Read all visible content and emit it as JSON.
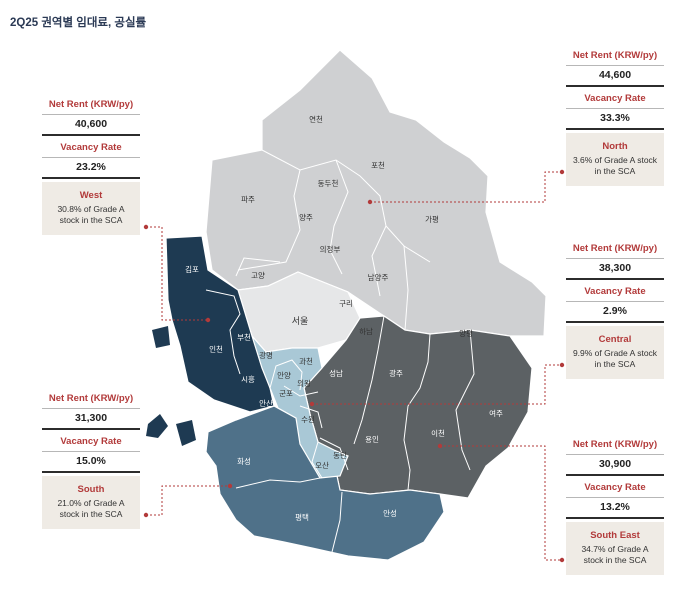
{
  "title": "2Q25 권역별 임대료, 공실률",
  "cards": {
    "north": {
      "rent_label": "Net Rent (KRW/py)",
      "rent": "44,600",
      "vac_label": "Vacancy Rate",
      "vac": "33.3%",
      "name": "North",
      "desc": "3.6% of Grade A stock in the SCA"
    },
    "west": {
      "rent_label": "Net Rent (KRW/py)",
      "rent": "40,600",
      "vac_label": "Vacancy Rate",
      "vac": "23.2%",
      "name": "West",
      "desc": "30.8% of Grade A stock in the SCA"
    },
    "central": {
      "rent_label": "Net Rent (KRW/py)",
      "rent": "38,300",
      "vac_label": "Vacancy Rate",
      "vac": "2.9%",
      "name": "Central",
      "desc": "9.9% of Grade A stock in the SCA"
    },
    "south": {
      "rent_label": "Net Rent (KRW/py)",
      "rent": "31,300",
      "vac_label": "Vacancy Rate",
      "vac": "15.0%",
      "name": "South",
      "desc": "21.0% of Grade A stock in the SCA"
    },
    "southeast": {
      "rent_label": "Net Rent (KRW/py)",
      "rent": "30,900",
      "vac_label": "Vacancy Rate",
      "vac": "13.2%",
      "name": "South East",
      "desc": "34.7% of Grade A stock in the SCA"
    }
  },
  "regions": {
    "yeoncheon": "연천",
    "pocheon": "포천",
    "dongducheon": "동두천",
    "paju": "파주",
    "yangju": "양주",
    "gapyeong": "가평",
    "uijeongbu": "의정부",
    "goyang": "고양",
    "namyangju": "남양주",
    "gimpo": "김포",
    "guri": "구리",
    "seoul": "서울",
    "hanam": "하남",
    "yangpyeong": "양평",
    "bucheon": "부천",
    "incheon": "인천",
    "gwangmyeong": "광명",
    "gwacheon": "과천",
    "seongnam": "성남",
    "gwangju": "광주",
    "anyang": "안양",
    "uiwang": "의왕",
    "gunpo": "군포",
    "siheung": "시흥",
    "ansan": "안산",
    "suwon": "수원",
    "yeoju": "여주",
    "icheon": "이천",
    "yongin": "용인",
    "hwaseong": "화성",
    "dongtan": "동탄",
    "osan": "오산",
    "pyeongtaek": "평택",
    "anseong": "안성"
  },
  "colors": {
    "north": "#cfd0d2",
    "central": "#e6e7e8",
    "west": "#1e3a52",
    "southeast": "#5c6164",
    "south": "#4f7189",
    "inner": "#a9c8d6",
    "accent": "#b23a3a"
  }
}
